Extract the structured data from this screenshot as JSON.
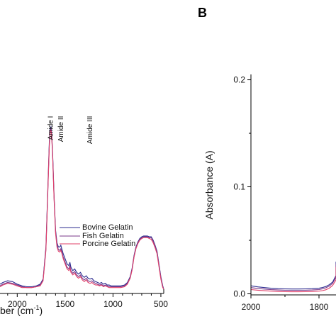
{
  "chart_data": [
    {
      "panel": "",
      "type": "line",
      "xlabel_visible": "ber (cm",
      "xlabel_sup": "-1",
      "xlabel_end": ")",
      "ylabel": "",
      "x_reversed": true,
      "xlim": [
        2180,
        470
      ],
      "ylim": [
        -0.005,
        0.25
      ],
      "xticks": [
        2000,
        1500,
        1000,
        500
      ],
      "xtick_labels": [
        "2000",
        "1500",
        "1000",
        "500"
      ],
      "annotations": [
        {
          "text": "Amide I",
          "x": 1650,
          "y": 0.205
        },
        {
          "text": "Amide II",
          "x": 1545,
          "y": 0.205
        },
        {
          "text": "Amide III",
          "x": 1240,
          "y": 0.205
        }
      ],
      "legend": [
        "Bovine Gelatin",
        "Fish Gelatin",
        "Porcine Gelatin"
      ],
      "colors": [
        "#2b2b8f",
        "#7a3a8a",
        "#e0406a"
      ],
      "series": [
        {
          "name": "Bovine Gelatin",
          "color": "#2b2b8f",
          "x": [
            2180,
            2150,
            2100,
            2050,
            2000,
            1950,
            1900,
            1850,
            1800,
            1760,
            1730,
            1700,
            1680,
            1665,
            1655,
            1648,
            1640,
            1630,
            1615,
            1600,
            1585,
            1570,
            1555,
            1545,
            1535,
            1520,
            1500,
            1480,
            1460,
            1450,
            1440,
            1420,
            1400,
            1380,
            1360,
            1340,
            1320,
            1300,
            1280,
            1260,
            1240,
            1220,
            1200,
            1180,
            1160,
            1140,
            1120,
            1100,
            1080,
            1060,
            1040,
            1020,
            1000,
            960,
            920,
            880,
            850,
            820,
            800,
            780,
            760,
            740,
            720,
            700,
            680,
            660,
            640,
            620,
            600,
            580,
            560,
            540,
            520,
            500,
            480,
            470
          ],
          "y": [
            0.006,
            0.008,
            0.01,
            0.009,
            0.006,
            0.004,
            0.003,
            0.003,
            0.004,
            0.006,
            0.012,
            0.05,
            0.12,
            0.175,
            0.19,
            0.192,
            0.185,
            0.16,
            0.11,
            0.07,
            0.055,
            0.05,
            0.05,
            0.052,
            0.048,
            0.042,
            0.036,
            0.03,
            0.028,
            0.032,
            0.026,
            0.022,
            0.024,
            0.02,
            0.018,
            0.02,
            0.016,
            0.014,
            0.016,
            0.013,
            0.012,
            0.013,
            0.01,
            0.009,
            0.008,
            0.007,
            0.008,
            0.006,
            0.007,
            0.005,
            0.005,
            0.004,
            0.004,
            0.004,
            0.004,
            0.005,
            0.008,
            0.015,
            0.025,
            0.04,
            0.05,
            0.056,
            0.06,
            0.062,
            0.063,
            0.063,
            0.063,
            0.062,
            0.062,
            0.058,
            0.052,
            0.045,
            0.03,
            0.015,
            0.004,
            0.0
          ]
        },
        {
          "name": "Fish Gelatin",
          "color": "#7a3a8a",
          "x": [
            2180,
            2150,
            2100,
            2050,
            2000,
            1950,
            1900,
            1850,
            1800,
            1760,
            1730,
            1700,
            1680,
            1665,
            1655,
            1648,
            1640,
            1630,
            1615,
            1600,
            1585,
            1570,
            1555,
            1545,
            1535,
            1520,
            1500,
            1480,
            1460,
            1450,
            1440,
            1420,
            1400,
            1380,
            1360,
            1340,
            1320,
            1300,
            1280,
            1260,
            1240,
            1220,
            1200,
            1180,
            1160,
            1140,
            1120,
            1100,
            1080,
            1060,
            1040,
            1020,
            1000,
            960,
            920,
            880,
            850,
            820,
            800,
            780,
            760,
            740,
            720,
            700,
            680,
            660,
            640,
            620,
            600,
            580,
            560,
            540,
            520,
            500,
            480,
            470
          ],
          "y": [
            0.004,
            0.006,
            0.008,
            0.007,
            0.005,
            0.003,
            0.002,
            0.002,
            0.003,
            0.005,
            0.011,
            0.048,
            0.118,
            0.172,
            0.188,
            0.19,
            0.183,
            0.158,
            0.108,
            0.068,
            0.052,
            0.047,
            0.046,
            0.048,
            0.045,
            0.038,
            0.032,
            0.026,
            0.024,
            0.028,
            0.022,
            0.019,
            0.021,
            0.017,
            0.015,
            0.017,
            0.013,
            0.011,
            0.013,
            0.01,
            0.009,
            0.01,
            0.008,
            0.007,
            0.006,
            0.005,
            0.006,
            0.004,
            0.005,
            0.004,
            0.003,
            0.003,
            0.003,
            0.003,
            0.003,
            0.004,
            0.007,
            0.014,
            0.024,
            0.039,
            0.049,
            0.055,
            0.059,
            0.061,
            0.062,
            0.062,
            0.062,
            0.061,
            0.061,
            0.057,
            0.051,
            0.044,
            0.029,
            0.014,
            0.003,
            0.0
          ]
        },
        {
          "name": "Porcine Gelatin",
          "color": "#e0406a",
          "x": [
            2180,
            2150,
            2100,
            2050,
            2000,
            1950,
            1900,
            1850,
            1800,
            1760,
            1730,
            1700,
            1680,
            1665,
            1655,
            1648,
            1640,
            1630,
            1615,
            1600,
            1585,
            1570,
            1555,
            1545,
            1535,
            1520,
            1500,
            1480,
            1460,
            1450,
            1440,
            1420,
            1400,
            1380,
            1360,
            1340,
            1320,
            1300,
            1280,
            1260,
            1240,
            1220,
            1200,
            1180,
            1160,
            1140,
            1120,
            1100,
            1080,
            1060,
            1040,
            1020,
            1000,
            960,
            920,
            880,
            850,
            820,
            800,
            780,
            760,
            740,
            720,
            700,
            680,
            660,
            640,
            620,
            600,
            580,
            560,
            540,
            520,
            500,
            480,
            470
          ],
          "y": [
            0.003,
            0.005,
            0.007,
            0.006,
            0.004,
            0.002,
            0.002,
            0.002,
            0.003,
            0.004,
            0.01,
            0.046,
            0.115,
            0.17,
            0.186,
            0.188,
            0.181,
            0.156,
            0.106,
            0.066,
            0.05,
            0.045,
            0.044,
            0.046,
            0.043,
            0.036,
            0.03,
            0.024,
            0.022,
            0.026,
            0.02,
            0.017,
            0.019,
            0.015,
            0.013,
            0.015,
            0.011,
            0.009,
            0.011,
            0.008,
            0.007,
            0.008,
            0.006,
            0.005,
            0.005,
            0.004,
            0.005,
            0.003,
            0.004,
            0.003,
            0.002,
            0.002,
            0.002,
            0.002,
            0.002,
            0.003,
            0.006,
            0.013,
            0.023,
            0.038,
            0.048,
            0.054,
            0.058,
            0.06,
            0.061,
            0.061,
            0.061,
            0.06,
            0.059,
            0.055,
            0.049,
            0.042,
            0.027,
            0.012,
            0.002,
            0.0
          ]
        }
      ]
    },
    {
      "panel": "B",
      "type": "line",
      "ylabel": "Absorbance (A)",
      "xlabel": "",
      "x_reversed": true,
      "xlim": [
        2000,
        1700
      ],
      "ylim": [
        -0.001,
        0.205
      ],
      "xticks": [
        2000,
        1800
      ],
      "xtick_labels": [
        "2000",
        "1800"
      ],
      "yticks": [
        0.0,
        0.1,
        0.2
      ],
      "ytick_labels": [
        "0.0",
        "0.1",
        "0.2"
      ],
      "colors": [
        "#2b2b8f",
        "#7a3a8a",
        "#e0406a"
      ],
      "series": [
        {
          "name": "Bovine Gelatin",
          "color": "#2b2b8f",
          "x": [
            2000,
            1980,
            1960,
            1940,
            1920,
            1900,
            1880,
            1860,
            1840,
            1820,
            1800,
            1790,
            1780,
            1770,
            1760,
            1750,
            1745,
            1740
          ],
          "y": [
            0.0075,
            0.0065,
            0.0058,
            0.0052,
            0.0048,
            0.0046,
            0.0045,
            0.0045,
            0.0046,
            0.0048,
            0.0052,
            0.0058,
            0.0068,
            0.0085,
            0.011,
            0.017,
            0.024,
            0.03
          ]
        },
        {
          "name": "Fish Gelatin",
          "color": "#7a3a8a",
          "x": [
            2000,
            1980,
            1960,
            1940,
            1920,
            1900,
            1880,
            1860,
            1840,
            1820,
            1800,
            1790,
            1780,
            1770,
            1760,
            1750,
            1745,
            1740
          ],
          "y": [
            0.0058,
            0.005,
            0.0044,
            0.0039,
            0.0036,
            0.0034,
            0.0033,
            0.0033,
            0.0034,
            0.0036,
            0.004,
            0.0046,
            0.0056,
            0.0072,
            0.0098,
            0.0155,
            0.022,
            0.028
          ]
        },
        {
          "name": "Porcine Gelatin",
          "color": "#e0406a",
          "x": [
            2000,
            1980,
            1960,
            1940,
            1920,
            1900,
            1880,
            1860,
            1840,
            1820,
            1800,
            1790,
            1780,
            1770,
            1760,
            1750,
            1745,
            1740
          ],
          "y": [
            0.004,
            0.0034,
            0.0029,
            0.0025,
            0.0022,
            0.002,
            0.0019,
            0.0019,
            0.002,
            0.0022,
            0.0025,
            0.003,
            0.0038,
            0.0052,
            0.0078,
            0.013,
            0.019,
            0.025
          ]
        }
      ]
    }
  ]
}
